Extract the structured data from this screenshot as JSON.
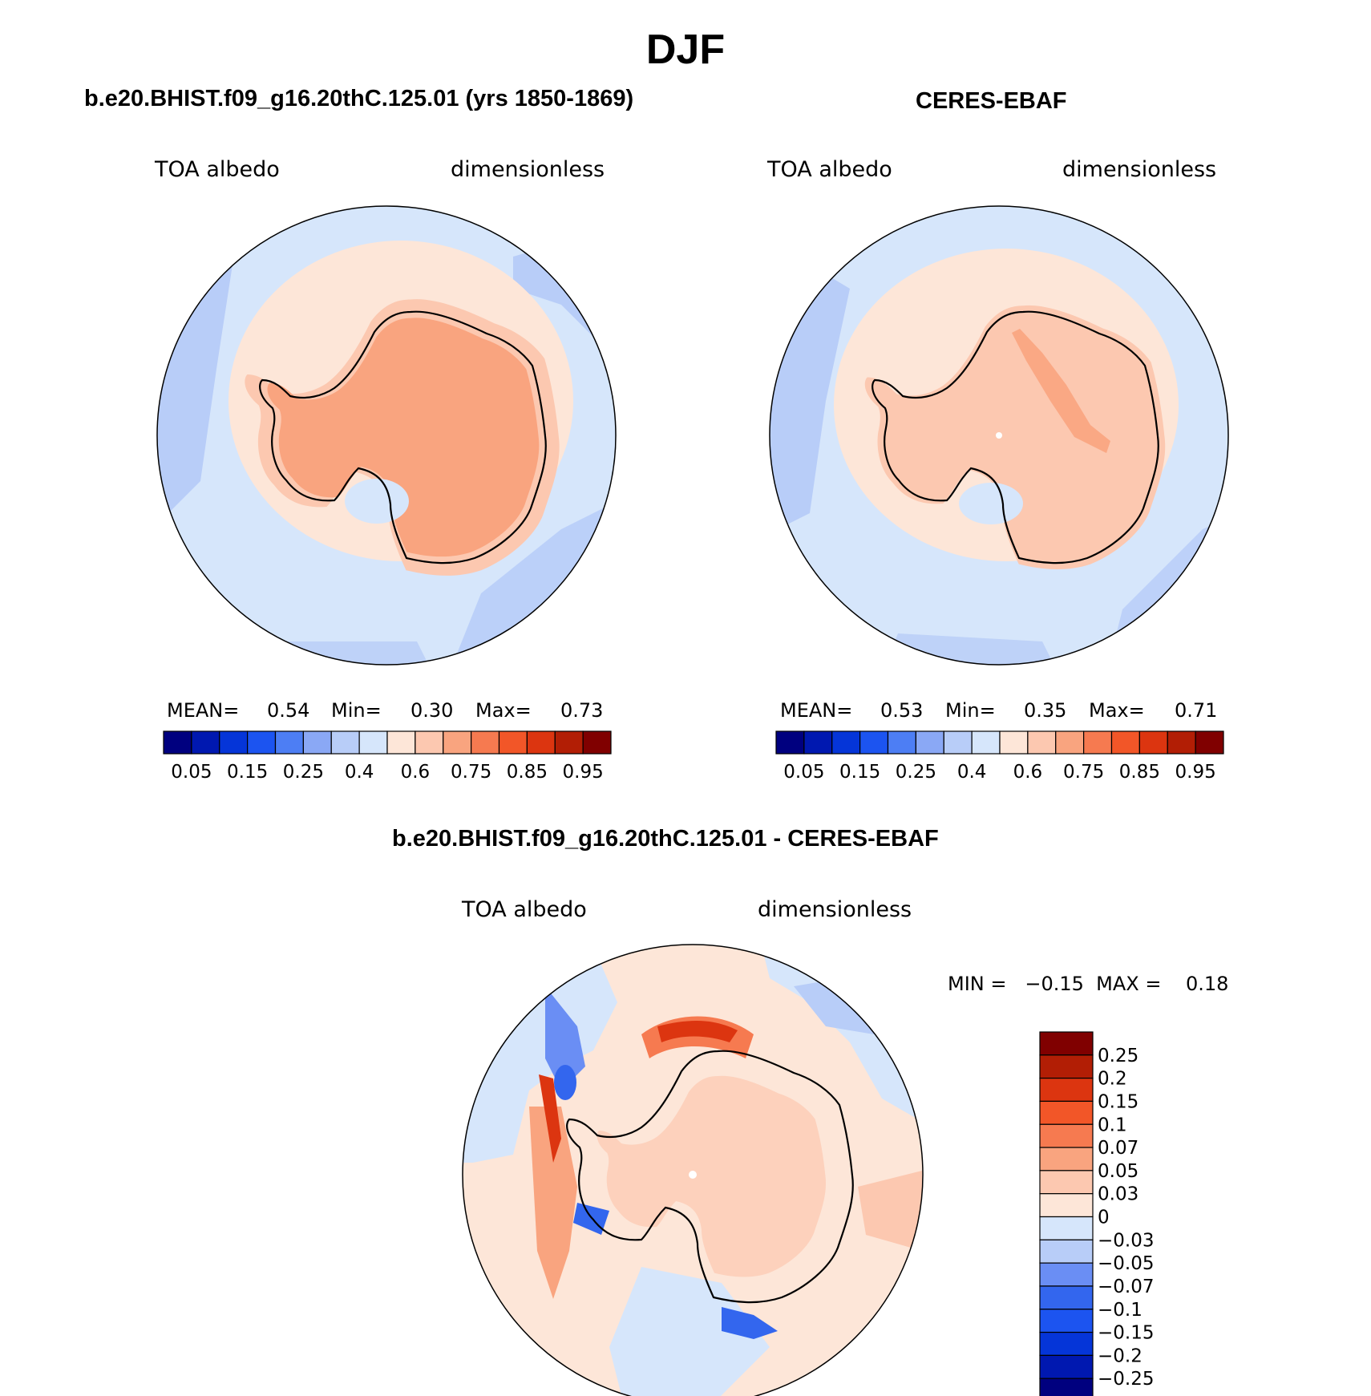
{
  "title": "DJF",
  "colors": {
    "abs_scale": [
      "#00007f",
      "#0018b0",
      "#0535d8",
      "#1c54f0",
      "#4d7ef4",
      "#8aa8f5",
      "#b8cdf8",
      "#d6e6fb",
      "#fde6d8",
      "#fcc8b0",
      "#f9a47f",
      "#f67a50",
      "#f25628",
      "#dc3510",
      "#b21e05",
      "#800000"
    ],
    "diff_scale": [
      "#00007f",
      "#0018b0",
      "#0535d8",
      "#1c54f0",
      "#3366ee",
      "#6a8ef4",
      "#b8cdf8",
      "#d6e6fb",
      "#fde6d8",
      "#fcc8b0",
      "#f9a47f",
      "#f67a50",
      "#f25628",
      "#dc3510",
      "#b21e05",
      "#800000"
    ],
    "coast": "#000000"
  },
  "panels": [
    {
      "title": "b.e20.BHIST.f09_g16.20thC.125.01 (yrs 1850-1869)",
      "left_label": "TOA albedo",
      "right_label": "dimensionless",
      "stats": {
        "mean_label": "MEAN=",
        "mean": "0.54",
        "min_label": "Min=",
        "min": "0.30",
        "max_label": "Max=",
        "max": "0.73"
      },
      "colorbar_ticks": [
        "0.05",
        "0.15",
        "0.25",
        "0.4",
        "0.6",
        "0.75",
        "0.85",
        "0.95"
      ]
    },
    {
      "title": "CERES-EBAF",
      "left_label": "TOA albedo",
      "right_label": "dimensionless",
      "stats": {
        "mean_label": "MEAN=",
        "mean": "0.53",
        "min_label": "Min=",
        "min": "0.35",
        "max_label": "Max=",
        "max": "0.71"
      },
      "colorbar_ticks": [
        "0.05",
        "0.15",
        "0.25",
        "0.4",
        "0.6",
        "0.75",
        "0.85",
        "0.95"
      ]
    }
  ],
  "diff": {
    "title": "b.e20.BHIST.f09_g16.20thC.125.01 - CERES-EBAF",
    "left_label": "TOA albedo",
    "right_label": "dimensionless",
    "range_text": "MIN =   −0.15  MAX =    0.18",
    "colorbar_ticks": [
      "0.25",
      "0.2",
      "0.15",
      "0.1",
      "0.07",
      "0.05",
      "0.03",
      "0",
      "−0.03",
      "−0.05",
      "−0.07",
      "−0.1",
      "−0.15",
      "−0.2",
      "−0.25"
    ]
  }
}
